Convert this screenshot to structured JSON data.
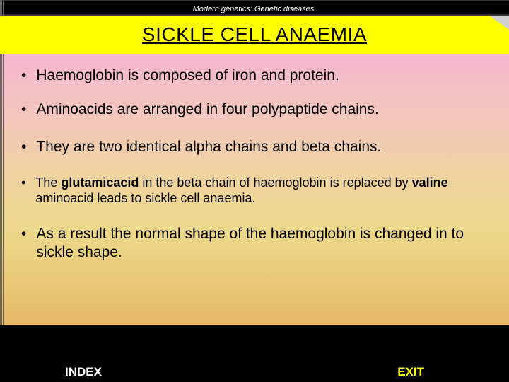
{
  "header": {
    "subject": "Modern genetics: Genetic diseases."
  },
  "title": "SICKLE CELL ANAEMIA",
  "bullets": [
    {
      "text": "Haemoglobin is composed of iron and protein.",
      "size": "large"
    },
    {
      "text": "Aminoacids are arranged in four polypaptide chains.",
      "size": "large"
    },
    {
      "text": "They are two identical alpha chains and beta chains.",
      "size": "large"
    },
    {
      "html": "The <b>glutamicacid</b> in the beta chain of haemoglobin is replaced by <b>valine</b> aminoacid leads to sickle cell anaemia.",
      "size": "small"
    },
    {
      "text": "As a result the normal shape of the haemoglobin is changed in to sickle shape.",
      "size": "large"
    }
  ],
  "footer": {
    "index_label": "INDEX",
    "exit_label": "EXIT"
  },
  "colors": {
    "title_bg": "#ffff00",
    "header_bg": "#000000",
    "footer_bg": "#000000",
    "exit_color": "#ffff00",
    "index_color": "#ffffff"
  }
}
